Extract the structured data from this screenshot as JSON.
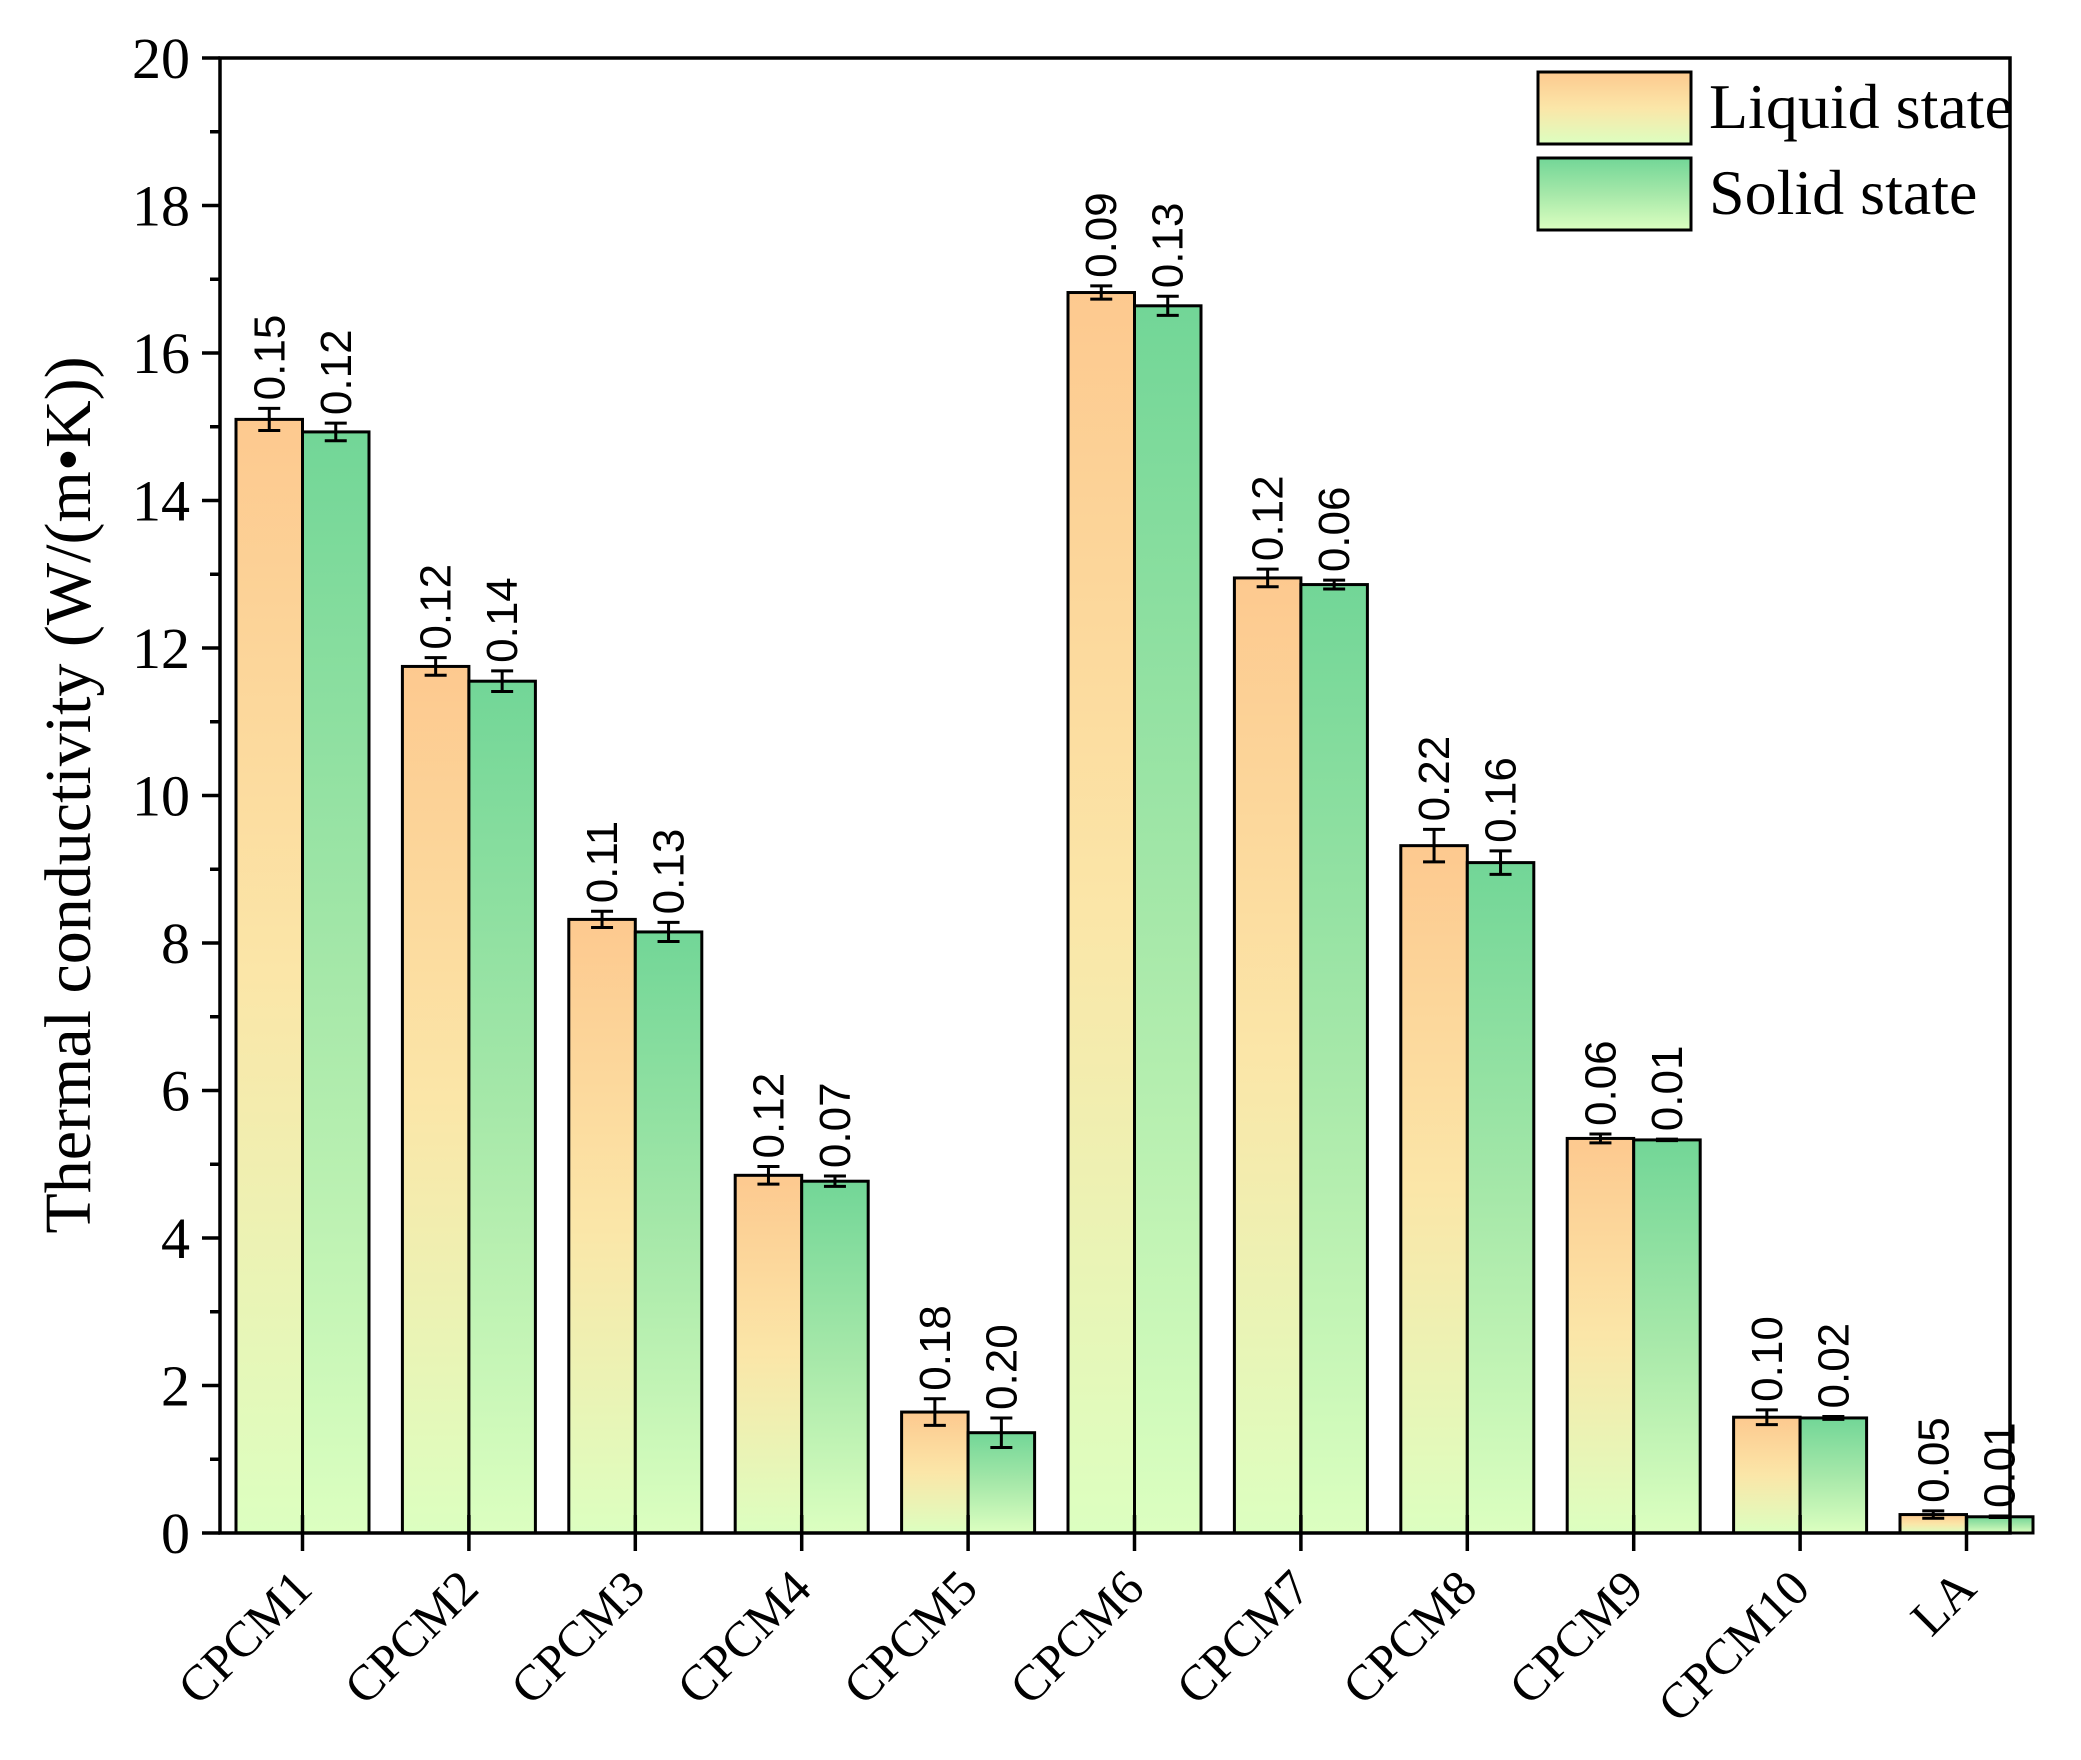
{
  "chart_data": {
    "type": "bar",
    "title": "",
    "xlabel": "",
    "ylabel": "Thermal conductivity (W/(m•K))",
    "ylim": [
      0,
      20
    ],
    "yticks": [
      0,
      2,
      4,
      6,
      8,
      10,
      12,
      14,
      16,
      18,
      20
    ],
    "ytick_labels": [
      "0",
      "2",
      "4",
      "6",
      "8",
      "10",
      "12",
      "14",
      "16",
      "18",
      "20"
    ],
    "grid": false,
    "legend_position": "top-right",
    "categories": [
      "CPCM1",
      "CPCM2",
      "CPCM3",
      "CPCM4",
      "CPCM5",
      "CPCM6",
      "CPCM7",
      "CPCM8",
      "CPCM9",
      "CPCM10",
      "LA"
    ],
    "series": [
      {
        "name": "Liquid state",
        "values": [
          15.1,
          11.75,
          8.32,
          4.85,
          1.64,
          16.82,
          12.95,
          9.32,
          5.35,
          1.57,
          0.25
        ],
        "errors": [
          0.15,
          0.12,
          0.11,
          0.12,
          0.18,
          0.09,
          0.12,
          0.22,
          0.06,
          0.1,
          0.05
        ],
        "error_labels": [
          "0.15",
          "0.12",
          "0.11",
          "0.12",
          "0.18",
          "0.09",
          "0.12",
          "0.22",
          "0.06",
          "0.10",
          "0.05"
        ],
        "gradient_top": "#fdc98f",
        "gradient_mid": "#fbe6a8",
        "gradient_bottom": "#dcffc0"
      },
      {
        "name": "Solid state",
        "values": [
          14.93,
          11.55,
          8.15,
          4.77,
          1.36,
          16.64,
          12.86,
          9.09,
          5.33,
          1.56,
          0.22
        ],
        "errors": [
          0.12,
          0.14,
          0.13,
          0.07,
          0.2,
          0.13,
          0.06,
          0.16,
          0.01,
          0.02,
          0.01
        ],
        "error_labels": [
          "0.12",
          "0.14",
          "0.13",
          "0.07",
          "0.20",
          "0.13",
          "0.06",
          "0.16",
          "0.01",
          "0.02",
          "0.01"
        ],
        "gradient_top": "#72d697",
        "gradient_mid": "#a6e8a9",
        "gradient_bottom": "#dcffc0"
      }
    ]
  }
}
